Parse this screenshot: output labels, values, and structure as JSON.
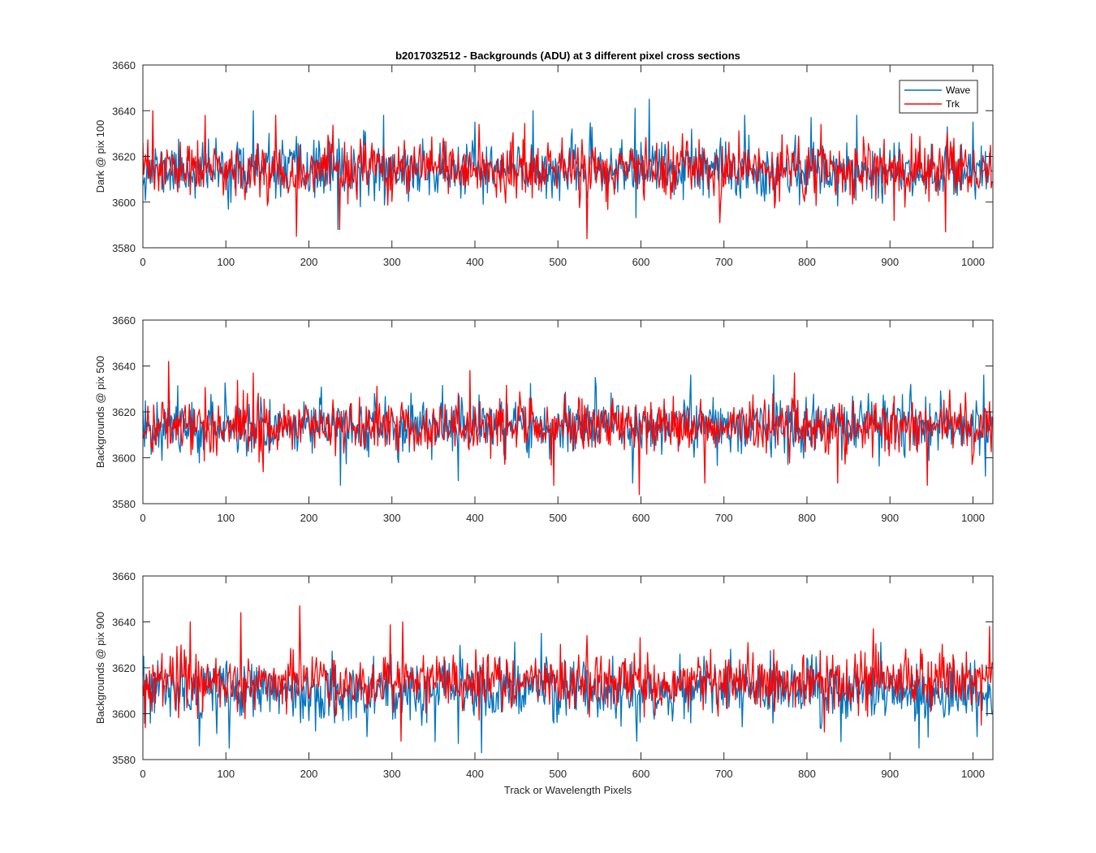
{
  "figure_title": "b2017032512 - Backgrounds (ADU) at 3 different pixel cross sections",
  "colors": {
    "wave": "#0072bd",
    "trk": "#ff0000",
    "axis": "#262626",
    "background": "#ffffff"
  },
  "chart_data": [
    {
      "type": "line",
      "title": "b2017032512 - Backgrounds (ADU) at 3 different pixel cross sections",
      "xlabel": "",
      "ylabel": "Dark @ pix 100",
      "xlim": [
        0,
        1024
      ],
      "ylim": [
        3580,
        3660
      ],
      "xticks": [
        0,
        100,
        200,
        300,
        400,
        500,
        600,
        700,
        800,
        900,
        1000
      ],
      "yticks": [
        3580,
        3600,
        3620,
        3640,
        3660
      ],
      "legend": {
        "position": "top-right",
        "entries": [
          "Wave",
          "Trk"
        ]
      },
      "series": [
        {
          "name": "Wave",
          "mean": 3614,
          "std": 6,
          "n": 1024,
          "seed": 11,
          "spikes": [
            [
              133,
              3640
            ],
            [
              290,
              3638
            ],
            [
              610,
              3645
            ],
            [
              593,
              3641
            ],
            [
              470,
              3640
            ],
            [
              235,
              3588
            ],
            [
              400,
              3635
            ],
            [
              725,
              3638
            ],
            [
              805,
              3637
            ],
            [
              860,
              3638
            ],
            [
              1000,
              3635
            ]
          ]
        },
        {
          "name": "Trk",
          "mean": 3614,
          "std": 6,
          "n": 1024,
          "seed": 23,
          "spikes": [
            [
              12,
              3640
            ],
            [
              185,
              3585
            ],
            [
              237,
              3588
            ],
            [
              535,
              3584
            ],
            [
              160,
              3638
            ],
            [
              75,
              3638
            ],
            [
              405,
              3634
            ],
            [
              695,
              3591
            ],
            [
              967,
              3587
            ],
            [
              905,
              3592
            ]
          ]
        }
      ]
    },
    {
      "type": "line",
      "title": "",
      "xlabel": "",
      "ylabel": "Backgrounds @ pix 500",
      "xlim": [
        0,
        1024
      ],
      "ylim": [
        3580,
        3660
      ],
      "xticks": [
        0,
        100,
        200,
        300,
        400,
        500,
        600,
        700,
        800,
        900,
        1000
      ],
      "yticks": [
        3580,
        3600,
        3620,
        3640,
        3660
      ],
      "legend": null,
      "series": [
        {
          "name": "Wave",
          "mean": 3614,
          "std": 6,
          "n": 1024,
          "seed": 37,
          "spikes": [
            [
              238,
              3588
            ],
            [
              590,
              3589
            ],
            [
              660,
              3636
            ],
            [
              760,
              3636
            ],
            [
              1013,
              3636
            ],
            [
              1015,
              3592
            ],
            [
              380,
              3590
            ],
            [
              545,
              3635
            ],
            [
              925,
              3632
            ]
          ]
        },
        {
          "name": "Trk",
          "mean": 3614,
          "std": 6,
          "n": 1024,
          "seed": 41,
          "spikes": [
            [
              31,
              3642
            ],
            [
              394,
              3638
            ],
            [
              598,
              3584
            ],
            [
              495,
              3588
            ],
            [
              677,
              3589
            ],
            [
              837,
              3589
            ],
            [
              133,
              3637
            ],
            [
              785,
              3637
            ],
            [
              945,
              3588
            ],
            [
              1000,
              3600
            ]
          ]
        }
      ]
    },
    {
      "type": "line",
      "title": "",
      "xlabel": "Track or Wavelength Pixels",
      "ylabel": "Backgrounds @ pix 900",
      "xlim": [
        0,
        1024
      ],
      "ylim": [
        3580,
        3660
      ],
      "xticks": [
        0,
        100,
        200,
        300,
        400,
        500,
        600,
        700,
        800,
        900,
        1000
      ],
      "yticks": [
        3580,
        3600,
        3620,
        3640,
        3660
      ],
      "legend": null,
      "series": [
        {
          "name": "Wave",
          "mean": 3610,
          "std": 6.5,
          "n": 1024,
          "seed": 53,
          "spikes": [
            [
              104,
              3585
            ],
            [
              408,
              3583
            ],
            [
              935,
              3585
            ],
            [
              480,
              3635
            ],
            [
              68,
              3586
            ],
            [
              270,
              3590
            ],
            [
              380,
              3587
            ],
            [
              1005,
              3590
            ],
            [
              595,
              3588
            ]
          ]
        },
        {
          "name": "Trk",
          "mean": 3614,
          "std": 6,
          "n": 1024,
          "seed": 67,
          "spikes": [
            [
              189,
              3647
            ],
            [
              118,
              3644
            ],
            [
              57,
              3640
            ],
            [
              1020,
              3638
            ],
            [
              313,
              3640
            ],
            [
              311,
              3588
            ],
            [
              3,
              3594
            ],
            [
              535,
              3634
            ],
            [
              880,
              3637
            ],
            [
              1010,
              3595
            ]
          ]
        }
      ]
    }
  ]
}
